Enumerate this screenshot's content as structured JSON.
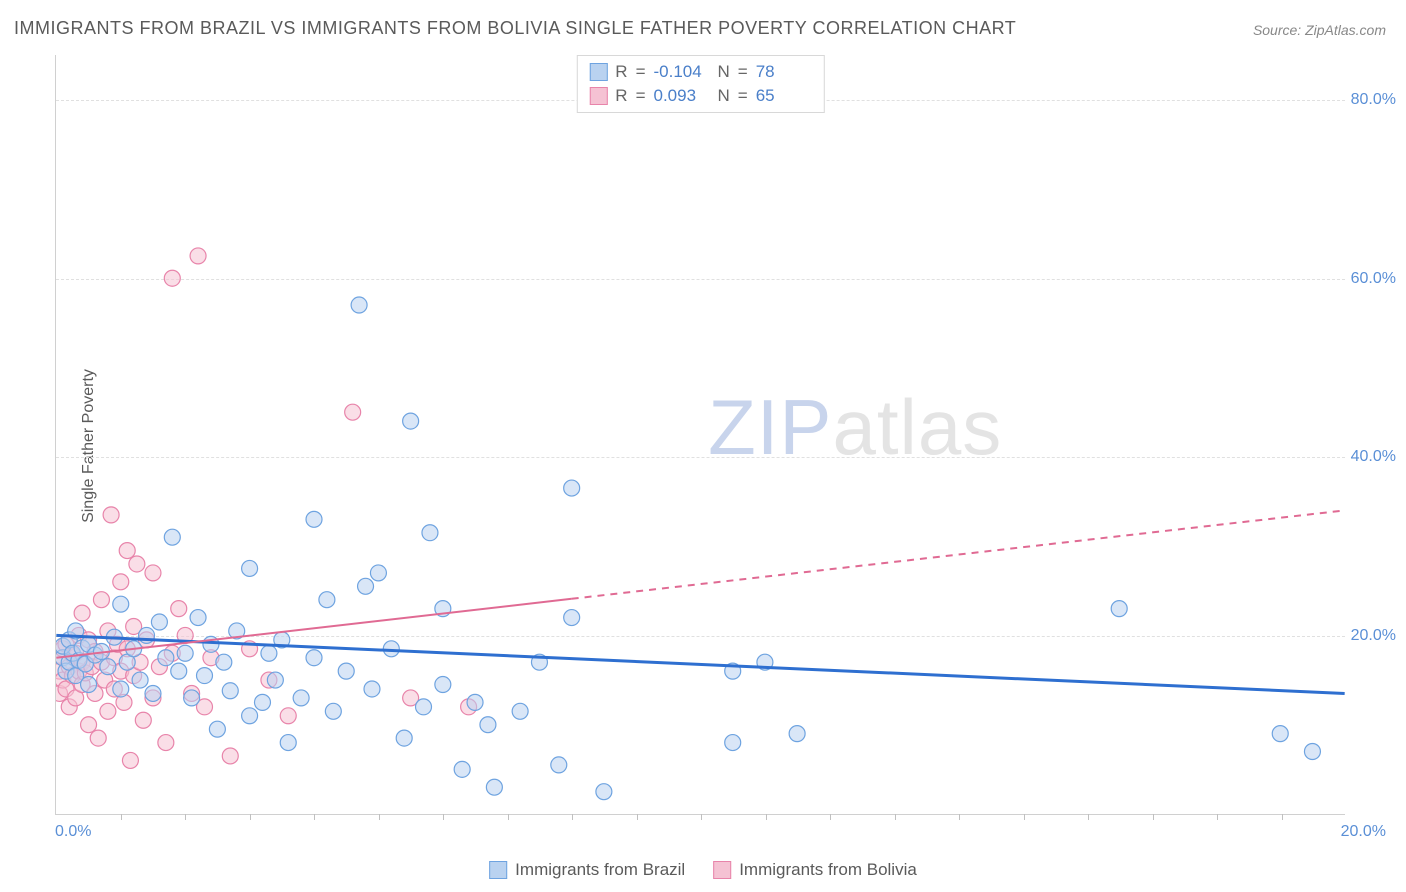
{
  "title": "IMMIGRANTS FROM BRAZIL VS IMMIGRANTS FROM BOLIVIA SINGLE FATHER POVERTY CORRELATION CHART",
  "source_label": "Source: ",
  "source_name": "ZipAtlas.com",
  "ylabel": "Single Father Poverty",
  "watermark_a": "ZIP",
  "watermark_b": "atlas",
  "chart": {
    "type": "scatter-with-regression",
    "background_color": "#ffffff",
    "grid_color": "#e0e0e0",
    "axis_color": "#d0d0d0",
    "tick_label_color": "#5a8fd6",
    "xlim": [
      0,
      20
    ],
    "ylim": [
      0,
      85
    ],
    "y_ticks": [
      20,
      40,
      60,
      80
    ],
    "y_tick_labels": [
      "20.0%",
      "40.0%",
      "60.0%",
      "80.0%"
    ],
    "x_minor_ticks": [
      1,
      2,
      3,
      4,
      5,
      6,
      7,
      8,
      9,
      10,
      11,
      12,
      13,
      14,
      15,
      16,
      17,
      18,
      19
    ],
    "x_left_label": "0.0%",
    "x_right_label": "20.0%",
    "marker_radius": 8,
    "marker_stroke_width": 1.2,
    "series": [
      {
        "name": "Immigrants from Brazil",
        "fill": "#b9d2f0",
        "stroke": "#6ea3e0",
        "fill_opacity": 0.55,
        "R": "-0.104",
        "N": "78",
        "trend": {
          "color": "#2e6fd0",
          "width": 3,
          "y_at_x0": 20.0,
          "y_at_x20": 13.5,
          "solid_until_x": 20
        },
        "points": [
          [
            0.1,
            17.5
          ],
          [
            0.1,
            18.8
          ],
          [
            0.15,
            16.0
          ],
          [
            0.2,
            19.5
          ],
          [
            0.2,
            17.0
          ],
          [
            0.25,
            18.0
          ],
          [
            0.3,
            15.5
          ],
          [
            0.3,
            20.5
          ],
          [
            0.35,
            17.2
          ],
          [
            0.4,
            18.6
          ],
          [
            0.45,
            16.8
          ],
          [
            0.5,
            19.0
          ],
          [
            0.5,
            14.5
          ],
          [
            0.6,
            17.8
          ],
          [
            0.7,
            18.2
          ],
          [
            0.8,
            16.5
          ],
          [
            0.9,
            19.8
          ],
          [
            1.0,
            23.5
          ],
          [
            1.0,
            14.0
          ],
          [
            1.1,
            17.0
          ],
          [
            1.2,
            18.5
          ],
          [
            1.3,
            15.0
          ],
          [
            1.4,
            20.0
          ],
          [
            1.5,
            13.5
          ],
          [
            1.6,
            21.5
          ],
          [
            1.7,
            17.5
          ],
          [
            1.8,
            31.0
          ],
          [
            1.9,
            16.0
          ],
          [
            2.0,
            18.0
          ],
          [
            2.1,
            13.0
          ],
          [
            2.2,
            22.0
          ],
          [
            2.3,
            15.5
          ],
          [
            2.4,
            19.0
          ],
          [
            2.5,
            9.5
          ],
          [
            2.6,
            17.0
          ],
          [
            2.7,
            13.8
          ],
          [
            2.8,
            20.5
          ],
          [
            3.0,
            27.5
          ],
          [
            3.0,
            11.0
          ],
          [
            3.2,
            12.5
          ],
          [
            3.3,
            18.0
          ],
          [
            3.4,
            15.0
          ],
          [
            3.5,
            19.5
          ],
          [
            3.6,
            8.0
          ],
          [
            3.8,
            13.0
          ],
          [
            4.0,
            33.0
          ],
          [
            4.0,
            17.5
          ],
          [
            4.2,
            24.0
          ],
          [
            4.3,
            11.5
          ],
          [
            4.5,
            16.0
          ],
          [
            4.7,
            57.0
          ],
          [
            4.8,
            25.5
          ],
          [
            4.9,
            14.0
          ],
          [
            5.0,
            27.0
          ],
          [
            5.2,
            18.5
          ],
          [
            5.4,
            8.5
          ],
          [
            5.5,
            44.0
          ],
          [
            5.7,
            12.0
          ],
          [
            5.8,
            31.5
          ],
          [
            6.0,
            23.0
          ],
          [
            6.3,
            5.0
          ],
          [
            6.5,
            12.5
          ],
          [
            6.7,
            10.0
          ],
          [
            6.8,
            3.0
          ],
          [
            7.2,
            11.5
          ],
          [
            7.5,
            17.0
          ],
          [
            7.8,
            5.5
          ],
          [
            8.0,
            22.0
          ],
          [
            8.0,
            36.5
          ],
          [
            8.5,
            2.5
          ],
          [
            10.5,
            8.0
          ],
          [
            10.5,
            16.0
          ],
          [
            11.0,
            17.0
          ],
          [
            11.5,
            9.0
          ],
          [
            16.5,
            23.0
          ],
          [
            19.0,
            9.0
          ],
          [
            19.5,
            7.0
          ],
          [
            6.0,
            14.5
          ]
        ]
      },
      {
        "name": "Immigrants from Bolivia",
        "fill": "#f5c2d3",
        "stroke": "#e884aa",
        "fill_opacity": 0.55,
        "R": "0.093",
        "N": "65",
        "trend": {
          "color": "#e06a93",
          "width": 2,
          "y_at_x0": 17.5,
          "y_at_x20": 34.0,
          "solid_until_x": 8.0
        },
        "points": [
          [
            0.05,
            13.5
          ],
          [
            0.05,
            16.0
          ],
          [
            0.1,
            17.5
          ],
          [
            0.1,
            15.0
          ],
          [
            0.1,
            18.5
          ],
          [
            0.15,
            14.0
          ],
          [
            0.15,
            19.0
          ],
          [
            0.2,
            16.5
          ],
          [
            0.2,
            12.0
          ],
          [
            0.25,
            17.8
          ],
          [
            0.25,
            15.5
          ],
          [
            0.3,
            13.0
          ],
          [
            0.3,
            18.0
          ],
          [
            0.35,
            16.0
          ],
          [
            0.35,
            20.0
          ],
          [
            0.4,
            14.5
          ],
          [
            0.4,
            17.0
          ],
          [
            0.4,
            22.5
          ],
          [
            0.45,
            15.8
          ],
          [
            0.5,
            19.5
          ],
          [
            0.5,
            10.0
          ],
          [
            0.55,
            16.5
          ],
          [
            0.6,
            18.2
          ],
          [
            0.6,
            13.5
          ],
          [
            0.65,
            8.5
          ],
          [
            0.7,
            17.0
          ],
          [
            0.7,
            24.0
          ],
          [
            0.75,
            15.0
          ],
          [
            0.8,
            20.5
          ],
          [
            0.8,
            11.5
          ],
          [
            0.85,
            33.5
          ],
          [
            0.9,
            17.5
          ],
          [
            0.9,
            14.0
          ],
          [
            0.95,
            19.0
          ],
          [
            1.0,
            26.0
          ],
          [
            1.0,
            16.0
          ],
          [
            1.05,
            12.5
          ],
          [
            1.1,
            18.5
          ],
          [
            1.1,
            29.5
          ],
          [
            1.15,
            6.0
          ],
          [
            1.2,
            21.0
          ],
          [
            1.2,
            15.5
          ],
          [
            1.25,
            28.0
          ],
          [
            1.3,
            17.0
          ],
          [
            1.35,
            10.5
          ],
          [
            1.4,
            19.5
          ],
          [
            1.5,
            13.0
          ],
          [
            1.5,
            27.0
          ],
          [
            1.6,
            16.5
          ],
          [
            1.7,
            8.0
          ],
          [
            1.8,
            18.0
          ],
          [
            1.9,
            23.0
          ],
          [
            2.0,
            20.0
          ],
          [
            2.1,
            13.5
          ],
          [
            2.2,
            62.5
          ],
          [
            2.3,
            12.0
          ],
          [
            2.4,
            17.5
          ],
          [
            1.8,
            60.0
          ],
          [
            2.7,
            6.5
          ],
          [
            3.0,
            18.5
          ],
          [
            3.3,
            15.0
          ],
          [
            3.6,
            11.0
          ],
          [
            4.6,
            45.0
          ],
          [
            5.5,
            13.0
          ],
          [
            6.4,
            12.0
          ]
        ]
      }
    ]
  },
  "legend_top": {
    "r_label": "R",
    "eq": "=",
    "n_label": "N"
  },
  "legend_bottom": {
    "item1": "Immigrants from Brazil",
    "item2": "Immigrants from Bolivia"
  }
}
